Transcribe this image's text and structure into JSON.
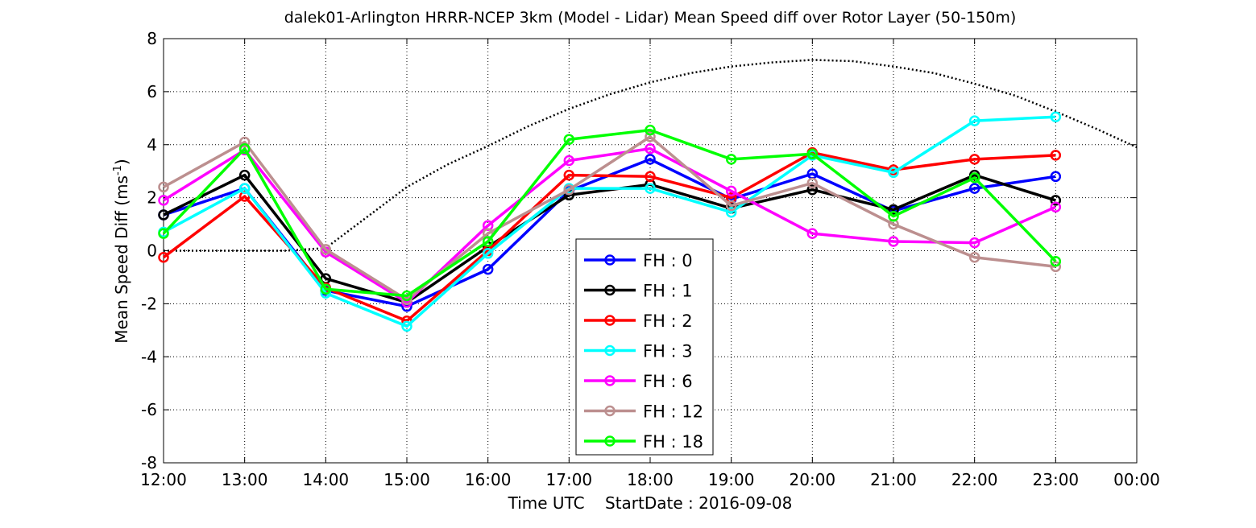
{
  "chart_data": {
    "type": "line",
    "title": "dalek01-Arlington HRRR-NCEP 3km (Model - Lidar) Mean Speed diff over Rotor Layer (50-150m)",
    "xlabel": "Time UTC    StartDate : 2016-09-08",
    "ylabel": "Mean Speed Diff (ms",
    "ylabel_sup": "-1",
    "ylabel_end": ")",
    "xlim": [
      12,
      24
    ],
    "ylim": [
      -8,
      8
    ],
    "x_ticks": [
      12,
      13,
      14,
      15,
      16,
      17,
      18,
      19,
      20,
      21,
      22,
      23,
      24
    ],
    "x_tick_labels": [
      "12:00",
      "13:00",
      "14:00",
      "15:00",
      "16:00",
      "17:00",
      "18:00",
      "19:00",
      "20:00",
      "21:00",
      "22:00",
      "23:00",
      "00:00"
    ],
    "y_ticks": [
      -8,
      -6,
      -4,
      -2,
      0,
      2,
      4,
      6,
      8
    ],
    "y_tick_labels": [
      "-8",
      "-6",
      "-4",
      "-2",
      "0",
      "2",
      "4",
      "6",
      "8"
    ],
    "grid": true,
    "legend_position": "center-left",
    "x": [
      12,
      13,
      14,
      15,
      16,
      17,
      18,
      19,
      20,
      21,
      22,
      23
    ],
    "series": [
      {
        "name": "FH : 0",
        "color": "#0000ff",
        "values": [
          1.35,
          2.35,
          -1.5,
          -2.1,
          -0.7,
          2.25,
          3.45,
          1.95,
          2.9,
          1.5,
          2.35,
          2.8
        ]
      },
      {
        "name": "FH : 1",
        "color": "#000000",
        "values": [
          1.35,
          2.85,
          -1.05,
          -1.95,
          0.15,
          2.1,
          2.5,
          1.6,
          2.3,
          1.55,
          2.85,
          1.9
        ]
      },
      {
        "name": "FH : 2",
        "color": "#ff0000",
        "values": [
          -0.25,
          2.05,
          -1.4,
          -2.65,
          0.0,
          2.85,
          2.8,
          2.0,
          3.7,
          3.05,
          3.45,
          3.6
        ]
      },
      {
        "name": "FH : 3",
        "color": "#00ffff",
        "values": [
          0.7,
          2.35,
          -1.6,
          -2.85,
          -0.1,
          2.35,
          2.35,
          1.45,
          3.6,
          2.95,
          4.9,
          5.05
        ]
      },
      {
        "name": "FH : 6",
        "color": "#ff00ff",
        "values": [
          1.9,
          3.8,
          -0.05,
          -1.95,
          0.95,
          3.4,
          3.85,
          2.25,
          0.65,
          0.35,
          0.3,
          1.65
        ]
      },
      {
        "name": "FH : 12",
        "color": "#bc8f8f",
        "values": [
          2.4,
          4.1,
          0.05,
          -1.85,
          0.65,
          2.3,
          4.3,
          1.7,
          2.55,
          1.0,
          -0.25,
          -0.6
        ]
      },
      {
        "name": "FH : 18",
        "color": "#00ff00",
        "values": [
          0.65,
          3.85,
          -1.45,
          -1.7,
          0.35,
          4.2,
          4.55,
          3.45,
          3.65,
          1.3,
          2.75,
          -0.4
        ]
      }
    ],
    "reference_curve": {
      "style": "dotted",
      "color": "#000000",
      "x": [
        12,
        12.5,
        13,
        13.5,
        14,
        14.5,
        15,
        15.5,
        16,
        16.5,
        17,
        17.5,
        18,
        18.5,
        19,
        19.5,
        20,
        20.5,
        21,
        21.5,
        22,
        22.5,
        23,
        23.5,
        24
      ],
      "y": [
        0,
        0,
        0,
        0,
        0.1,
        1.25,
        2.4,
        3.25,
        3.95,
        4.7,
        5.35,
        5.9,
        6.35,
        6.7,
        6.95,
        7.1,
        7.2,
        7.15,
        6.95,
        6.7,
        6.3,
        5.85,
        5.25,
        4.6,
        3.9
      ]
    }
  }
}
